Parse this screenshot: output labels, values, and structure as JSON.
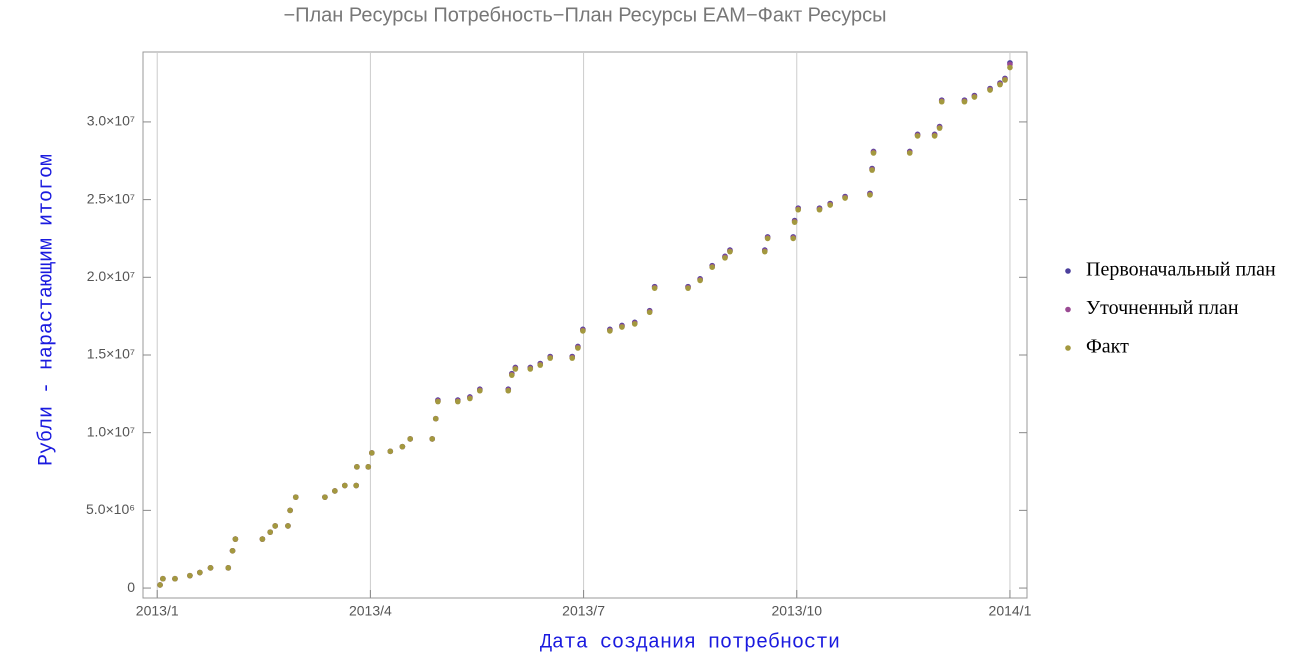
{
  "chart_data": {
    "type": "scatter",
    "title": "−План Ресурсы Потребность−План Ресурсы EAM−Факт Ресурсы",
    "x_label": "Дата создания потребности",
    "y_label": "Рубли - нарастающим итогом",
    "xlim": [
      -0.2,
      12.24
    ],
    "xticks": [
      {
        "value": 0,
        "label": "2013/1"
      },
      {
        "value": 3,
        "label": "2013/4"
      },
      {
        "value": 6,
        "label": "2013/7"
      },
      {
        "value": 9,
        "label": "2013/10"
      },
      {
        "value": 12,
        "label": "2014/1"
      }
    ],
    "ylim": [
      -640000,
      34500000
    ],
    "yticks": [
      0,
      {
        "value": 5000000,
        "label": "5.0×10⁶"
      },
      {
        "value": 10000000,
        "label": "1.0×10⁷"
      },
      {
        "value": 15000000,
        "label": "1.5×10⁷"
      },
      {
        "value": 20000000,
        "label": "2.0×10⁷"
      },
      {
        "value": 25000000,
        "label": "2.5×10⁷"
      },
      {
        "value": 30000000,
        "label": "3.0×10⁷"
      }
    ],
    "grid": true,
    "legend": "right",
    "x": [
      0.04,
      0.08,
      0.25,
      0.46,
      0.6,
      0.75,
      1.0,
      1.06,
      1.1,
      1.48,
      1.59,
      1.66,
      1.84,
      1.87,
      1.95,
      2.36,
      2.5,
      2.64,
      2.8,
      2.81,
      2.97,
      3.02,
      3.28,
      3.45,
      3.56,
      3.87,
      3.92,
      3.95,
      4.23,
      4.4,
      4.54,
      4.94,
      4.99,
      5.04,
      5.25,
      5.39,
      5.53,
      5.84,
      5.92,
      5.99,
      6.37,
      6.54,
      6.72,
      6.93,
      7.0,
      7.47,
      7.64,
      7.81,
      7.99,
      8.06,
      8.55,
      8.59,
      8.95,
      8.97,
      9.02,
      9.32,
      9.47,
      9.68,
      10.03,
      10.06,
      10.08,
      10.59,
      10.7,
      10.94,
      11.01,
      11.04,
      11.36,
      11.5,
      11.72,
      11.86,
      11.93,
      12.0
    ],
    "series": [
      {
        "name": "Первоначальный план",
        "color": "#4b3f9c",
        "values": [
          200000,
          600000,
          600000,
          800000,
          1000000,
          1300000,
          1300000,
          2400000,
          3150000,
          3150000,
          3600000,
          4000000,
          4000000,
          5000000,
          5850000,
          5850000,
          6250000,
          6600000,
          6600000,
          7800000,
          7800000,
          8700000,
          8800000,
          9100000,
          9600000,
          9600000,
          10900000,
          12100000,
          12100000,
          12300000,
          12800000,
          12800000,
          13800000,
          14200000,
          14200000,
          14450000,
          14900000,
          14900000,
          15550000,
          16650000,
          16650000,
          16900000,
          17100000,
          17850000,
          19400000,
          19400000,
          19900000,
          20750000,
          21350000,
          21750000,
          21750000,
          22600000,
          22600000,
          23650000,
          24450000,
          24450000,
          24750000,
          25200000,
          25400000,
          27000000,
          28100000,
          28100000,
          29200000,
          29200000,
          29700000,
          31400000,
          31400000,
          31700000,
          32150000,
          32500000,
          32800000,
          33800000
        ]
      },
      {
        "name": "Уточненный план",
        "color": "#9a4a93",
        "values": [
          200000,
          600000,
          600000,
          800000,
          1000000,
          1300000,
          1300000,
          2400000,
          3150000,
          3150000,
          3600000,
          4000000,
          4000000,
          5000000,
          5850000,
          5850000,
          6250000,
          6600000,
          6600000,
          7800000,
          7800000,
          8700000,
          8800000,
          9100000,
          9600000,
          9600000,
          10900000,
          12050000,
          12050000,
          12250000,
          12750000,
          12750000,
          13750000,
          14150000,
          14150000,
          14400000,
          14850000,
          14850000,
          15500000,
          16600000,
          16600000,
          16850000,
          17050000,
          17800000,
          19350000,
          19350000,
          19850000,
          20700000,
          21300000,
          21700000,
          21700000,
          22550000,
          22550000,
          23600000,
          24400000,
          24400000,
          24700000,
          25150000,
          25350000,
          26950000,
          28050000,
          28050000,
          29150000,
          29150000,
          29650000,
          31350000,
          31350000,
          31650000,
          32100000,
          32450000,
          32750000,
          33700000
        ]
      },
      {
        "name": "Факт",
        "color": "#a3983f",
        "values": [
          200000,
          600000,
          600000,
          800000,
          1000000,
          1300000,
          1300000,
          2400000,
          3150000,
          3150000,
          3600000,
          4000000,
          4000000,
          5000000,
          5850000,
          5850000,
          6250000,
          6600000,
          6600000,
          7800000,
          7800000,
          8700000,
          8800000,
          9100000,
          9600000,
          9600000,
          10900000,
          12000000,
          12000000,
          12200000,
          12700000,
          12700000,
          13700000,
          14100000,
          14100000,
          14350000,
          14800000,
          14800000,
          15450000,
          16550000,
          16550000,
          16800000,
          17000000,
          17750000,
          19300000,
          19300000,
          19800000,
          20650000,
          21250000,
          21650000,
          21650000,
          22500000,
          22500000,
          23550000,
          24350000,
          24350000,
          24650000,
          25100000,
          25300000,
          26900000,
          28000000,
          28000000,
          29100000,
          29100000,
          29600000,
          31300000,
          31300000,
          31600000,
          32050000,
          32400000,
          32700000,
          33500000
        ]
      }
    ]
  }
}
